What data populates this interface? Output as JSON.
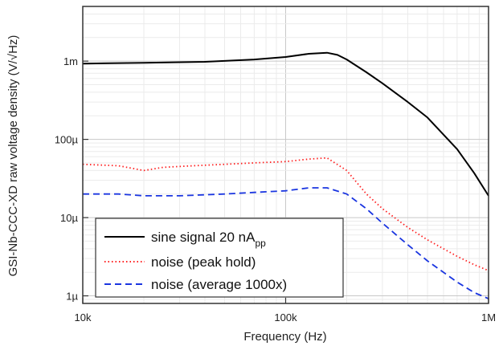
{
  "chart_data": {
    "type": "line",
    "xscale": "log",
    "yscale": "log",
    "xlim": [
      10000,
      1000000
    ],
    "ylim": [
      8e-07,
      0.005
    ],
    "xlabel": "Frequency (Hz)",
    "ylabel": "GSI-Nb-CCC-XD raw voltage density (V/√Hz)",
    "x_ticks": [
      {
        "value": 10000,
        "label": "10k"
      },
      {
        "value": 100000,
        "label": "100k"
      },
      {
        "value": 1000000,
        "label": "1M"
      }
    ],
    "y_ticks": [
      {
        "value": 1e-06,
        "label": "1µ"
      },
      {
        "value": 1e-05,
        "label": "10µ"
      },
      {
        "value": 0.0001,
        "label": "100µ"
      },
      {
        "value": 0.001,
        "label": "1m"
      }
    ],
    "grid": true,
    "legend_position": "bottom-left",
    "series": [
      {
        "name": "sine signal 20 nA",
        "name_subscript": "pp",
        "color": "#000000",
        "style": "solid",
        "points": [
          [
            10000,
            0.00093
          ],
          [
            20000,
            0.00095
          ],
          [
            40000,
            0.00098
          ],
          [
            70000,
            0.00105
          ],
          [
            100000,
            0.00113
          ],
          [
            130000,
            0.00124
          ],
          [
            160000,
            0.00128
          ],
          [
            180000,
            0.0012
          ],
          [
            200000,
            0.00105
          ],
          [
            250000,
            0.00072
          ],
          [
            300000,
            0.00052
          ],
          [
            400000,
            0.0003
          ],
          [
            500000,
            0.00019
          ],
          [
            700000,
            7.5e-05
          ],
          [
            850000,
            3.7e-05
          ],
          [
            1000000,
            1.9e-05
          ]
        ]
      },
      {
        "name": "noise (peak hold)",
        "color": "#ff2020",
        "style": "dotted",
        "points": [
          [
            10000,
            4.8e-05
          ],
          [
            15000,
            4.6e-05
          ],
          [
            20000,
            4e-05
          ],
          [
            25000,
            4.4e-05
          ],
          [
            35000,
            4.6e-05
          ],
          [
            50000,
            4.8e-05
          ],
          [
            70000,
            5e-05
          ],
          [
            100000,
            5.2e-05
          ],
          [
            130000,
            5.6e-05
          ],
          [
            160000,
            5.8e-05
          ],
          [
            200000,
            4e-05
          ],
          [
            250000,
            2e-05
          ],
          [
            300000,
            1.3e-05
          ],
          [
            400000,
            7.5e-06
          ],
          [
            500000,
            5.2e-06
          ],
          [
            700000,
            3.2e-06
          ],
          [
            850000,
            2.5e-06
          ],
          [
            1000000,
            2.1e-06
          ]
        ]
      },
      {
        "name": "noise (average 1000x)",
        "color": "#1a35e0",
        "style": "dashed",
        "points": [
          [
            10000,
            2e-05
          ],
          [
            15000,
            2e-05
          ],
          [
            20000,
            1.9e-05
          ],
          [
            30000,
            1.9e-05
          ],
          [
            50000,
            2e-05
          ],
          [
            70000,
            2.1e-05
          ],
          [
            100000,
            2.2e-05
          ],
          [
            130000,
            2.4e-05
          ],
          [
            160000,
            2.4e-05
          ],
          [
            200000,
            2e-05
          ],
          [
            250000,
            1.3e-05
          ],
          [
            300000,
            8.5e-06
          ],
          [
            400000,
            4.5e-06
          ],
          [
            500000,
            2.8e-06
          ],
          [
            700000,
            1.5e-06
          ],
          [
            850000,
            1.1e-06
          ],
          [
            1000000,
            9.2e-07
          ]
        ]
      }
    ]
  }
}
